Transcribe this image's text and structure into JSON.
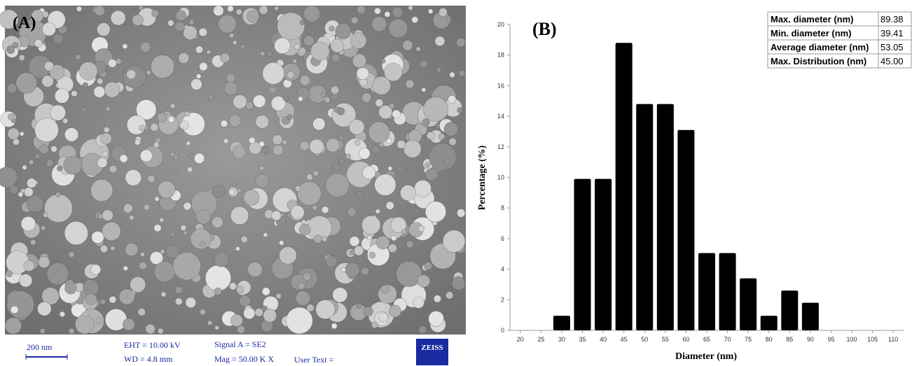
{
  "sem_panel": {
    "panel_label": "(A)",
    "scale_bar": "200 nm",
    "eht": "EHT = 10.00 kV",
    "wd": "WD = 4.8 mm",
    "signal": "Signal A = SE2",
    "mag": "Mag = 50.00 K X",
    "user_text": "User Text =",
    "logo": "ZEISS"
  },
  "stats_table": {
    "rows": [
      [
        "Max. diameter (nm)",
        "89.38"
      ],
      [
        "Min. diameter (nm)",
        "39.41"
      ],
      [
        "Average diameter (nm)",
        "53.05"
      ],
      [
        "Max. Distribution (nm)",
        "45.00"
      ]
    ]
  },
  "chart_data": {
    "type": "bar",
    "title": "(B)",
    "x_label": "Diameter (nm)",
    "y_label": "Percentage (%)",
    "x": [
      30,
      35,
      40,
      45,
      50,
      55,
      60,
      65,
      70,
      75,
      80,
      85,
      90
    ],
    "values": [
      0.95,
      9.9,
      9.9,
      18.8,
      14.8,
      14.8,
      13.1,
      5.05,
      5.05,
      3.4,
      0.95,
      2.6,
      1.8
    ],
    "color": "#000000",
    "xlim": [
      17.5,
      112.5
    ],
    "xticks": [
      20,
      25,
      30,
      35,
      40,
      45,
      50,
      55,
      60,
      65,
      70,
      75,
      80,
      85,
      90,
      95,
      100,
      105,
      110
    ],
    "ylim": [
      0,
      20
    ],
    "yticks": [
      0,
      2,
      4,
      6,
      8,
      10,
      12,
      14,
      16,
      18,
      20
    ],
    "grid": false
  }
}
